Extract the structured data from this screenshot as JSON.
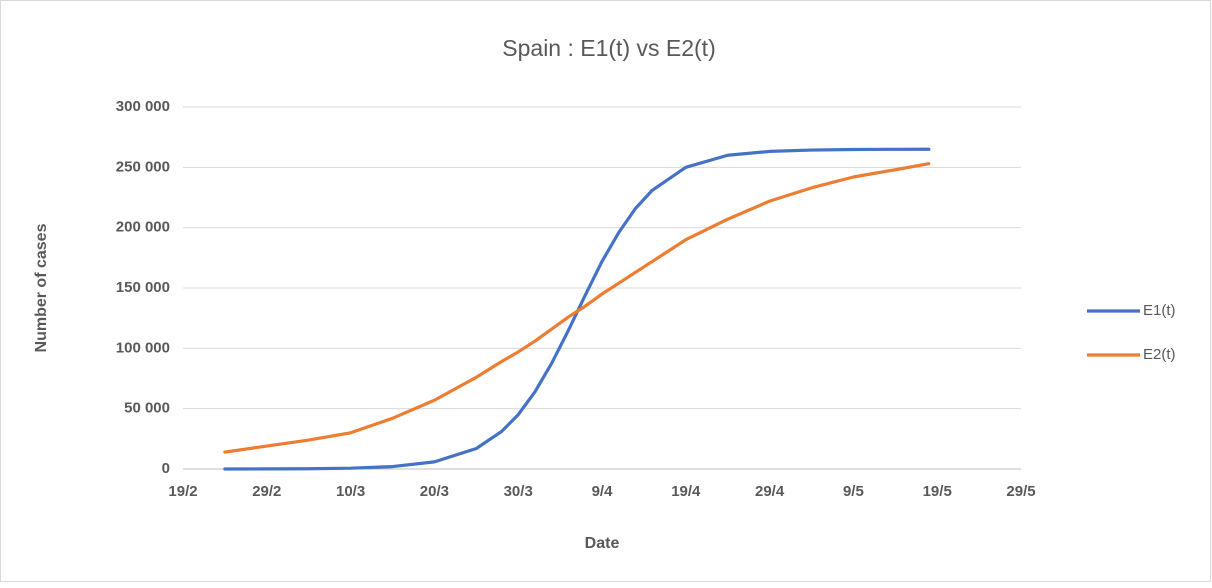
{
  "chart_data": {
    "type": "line",
    "title": "Spain : E1(t) vs E2(t)",
    "x_label": "Date",
    "y_label": "Number of cases",
    "x": [
      "24/2",
      "29/2",
      "5/3",
      "10/3",
      "15/3",
      "20/3",
      "25/3",
      "28/3",
      "30/3",
      "1/4",
      "3/4",
      "5/4",
      "7/4",
      "9/4",
      "11/4",
      "13/4",
      "15/4",
      "19/4",
      "24/4",
      "29/4",
      "4/5",
      "9/5",
      "14/5",
      "18/5"
    ],
    "series": [
      {
        "name": "E1(t)",
        "color": "#4472c4",
        "values": [
          25,
          74,
          222,
          670,
          2000,
          5900,
          17000,
          31000,
          45000,
          64000,
          87700,
          115000,
          144000,
          172000,
          196000,
          216000,
          231000,
          250000,
          260000,
          263200,
          264300,
          264800,
          264950,
          265000
        ]
      },
      {
        "name": "E2(t)",
        "color": "#ed7d31",
        "values": [
          14000,
          19000,
          24000,
          30000,
          42000,
          57000,
          76000,
          89000,
          97000,
          106000,
          116000,
          126000,
          135000,
          145000,
          154000,
          163000,
          172000,
          190000,
          207000,
          222000,
          233000,
          242000,
          248000,
          253000
        ]
      }
    ],
    "xlim": [
      "19/2",
      "29/5"
    ],
    "xticks": [
      "19/2",
      "29/2",
      "10/3",
      "20/3",
      "30/3",
      "9/4",
      "19/4",
      "29/4",
      "9/5",
      "19/5",
      "29/5"
    ],
    "ylim": [
      0,
      300000
    ],
    "yticks": [
      0,
      {
        "value": 50000,
        "label": "50 000"
      },
      {
        "value": 100000,
        "label": "100 000"
      },
      {
        "value": 150000,
        "label": "150 000"
      },
      {
        "value": 200000,
        "label": "200 000"
      },
      {
        "value": 250000,
        "label": "250 000"
      },
      {
        "value": 300000,
        "label": "300 000"
      }
    ],
    "grid": true,
    "legend": "right"
  }
}
